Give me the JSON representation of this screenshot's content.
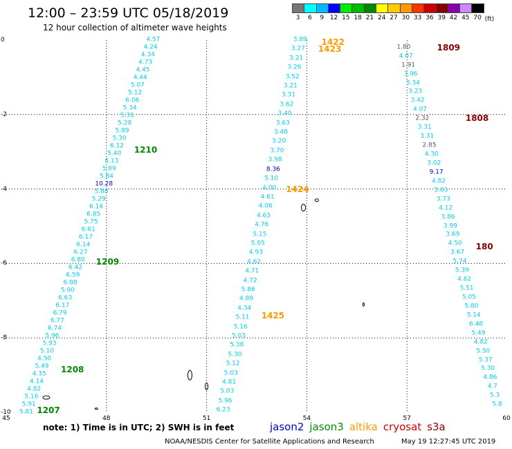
{
  "header": {
    "title": "12:00 – 23:59 UTC 05/18/2019",
    "subtitle": "12 hour collection of altimeter wave heights"
  },
  "colorbar": {
    "unit": "(ft)",
    "bins": [
      {
        "label": "3",
        "color": "#777777"
      },
      {
        "label": "6",
        "color": "#00ffff"
      },
      {
        "label": "9",
        "color": "#00bbff"
      },
      {
        "label": "12",
        "color": "#0000ff"
      },
      {
        "label": "15",
        "color": "#00ee00"
      },
      {
        "label": "18",
        "color": "#00bb00"
      },
      {
        "label": "21",
        "color": "#008800"
      },
      {
        "label": "24",
        "color": "#ffff00"
      },
      {
        "label": "27",
        "color": "#ffcc00"
      },
      {
        "label": "30",
        "color": "#ff9900"
      },
      {
        "label": "33",
        "color": "#ff3300"
      },
      {
        "label": "36",
        "color": "#cc0000"
      },
      {
        "label": "39",
        "color": "#880000"
      },
      {
        "label": "42",
        "color": "#8800aa"
      },
      {
        "label": "45",
        "color": "#cc88ff"
      },
      {
        "label": "70",
        "color": "#000000"
      }
    ]
  },
  "map": {
    "xlim": [
      45,
      60
    ],
    "ylim": [
      -10,
      0
    ],
    "x_ticks": [
      "45",
      "48",
      "51",
      "54",
      "57",
      "60"
    ],
    "y_ticks": [
      "0",
      "-2",
      "-4",
      "-6",
      "-8",
      "-10"
    ],
    "x_grid": [
      48,
      51,
      54,
      57
    ],
    "y_grid": [
      -2,
      -4,
      -6,
      -8
    ]
  },
  "colors": {
    "light_blue": "#00ccee",
    "dark_blue": "#0000cc",
    "gray": "#555555",
    "jason3": "#008800",
    "altika": "#ff9900",
    "cryosat": "#cc0000",
    "s3a": "#880000"
  },
  "passes": [
    {
      "satellite": "jason3",
      "lon0": 49.4,
      "lat0": 0.0,
      "lon1": 45.6,
      "lat1": -10.0,
      "times": [
        {
          "label": "1210",
          "lat": -2.95,
          "dlon": 0.55
        },
        {
          "label": "1209",
          "lat": -5.95,
          "dlon": 0.55
        },
        {
          "label": "1208",
          "lat": -8.85,
          "dlon": 0.6
        },
        {
          "label": "1207",
          "lat": -9.95,
          "dlon": 0.3
        }
      ],
      "values": [
        {
          "v": "4.57",
          "c": "light_blue"
        },
        {
          "v": "4.24",
          "c": "light_blue"
        },
        {
          "v": "4.34",
          "c": "light_blue"
        },
        {
          "v": "4.73",
          "c": "light_blue"
        },
        {
          "v": "4.45",
          "c": "light_blue"
        },
        {
          "v": "4.44",
          "c": "light_blue"
        },
        {
          "v": "5.07",
          "c": "light_blue"
        },
        {
          "v": "5.12",
          "c": "light_blue"
        },
        {
          "v": "6.06",
          "c": "light_blue"
        },
        {
          "v": "5.34",
          "c": "light_blue"
        },
        {
          "v": "5.31",
          "c": "light_blue"
        },
        {
          "v": "5.28",
          "c": "light_blue"
        },
        {
          "v": "5.89",
          "c": "light_blue"
        },
        {
          "v": "5.30",
          "c": "light_blue"
        },
        {
          "v": "6.12",
          "c": "light_blue"
        },
        {
          "v": "5.40",
          "c": "light_blue"
        },
        {
          "v": "6.13",
          "c": "light_blue"
        },
        {
          "v": "5.89",
          "c": "light_blue"
        },
        {
          "v": "5.84",
          "c": "light_blue"
        },
        {
          "v": "10.28",
          "c": "dark_blue"
        },
        {
          "v": "5.88",
          "c": "light_blue"
        },
        {
          "v": "5.29",
          "c": "light_blue"
        },
        {
          "v": "6.14",
          "c": "light_blue"
        },
        {
          "v": "6.85",
          "c": "light_blue"
        },
        {
          "v": "5.75",
          "c": "light_blue"
        },
        {
          "v": "6.61",
          "c": "light_blue"
        },
        {
          "v": "6.17",
          "c": "light_blue"
        },
        {
          "v": "6.14",
          "c": "light_blue"
        },
        {
          "v": "6.27",
          "c": "light_blue"
        },
        {
          "v": "6.80",
          "c": "light_blue"
        },
        {
          "v": "6.42",
          "c": "light_blue"
        },
        {
          "v": "6.59",
          "c": "light_blue"
        },
        {
          "v": "6.88",
          "c": "light_blue"
        },
        {
          "v": "5.90",
          "c": "light_blue"
        },
        {
          "v": "6.63",
          "c": "light_blue"
        },
        {
          "v": "6.17",
          "c": "light_blue"
        },
        {
          "v": "6.79",
          "c": "light_blue"
        },
        {
          "v": "6.77",
          "c": "light_blue"
        },
        {
          "v": "6.74",
          "c": "light_blue"
        },
        {
          "v": "5.96",
          "c": "light_blue"
        },
        {
          "v": "5.93",
          "c": "light_blue"
        },
        {
          "v": "5.10",
          "c": "light_blue"
        },
        {
          "v": "4.50",
          "c": "light_blue"
        },
        {
          "v": "5.49",
          "c": "light_blue"
        },
        {
          "v": "4.35",
          "c": "light_blue"
        },
        {
          "v": "4.14",
          "c": "light_blue"
        },
        {
          "v": "4.82",
          "c": "light_blue"
        },
        {
          "v": "5.16",
          "c": "light_blue"
        },
        {
          "v": "5.91",
          "c": "light_blue"
        },
        {
          "v": "5.81",
          "c": "light_blue"
        }
      ]
    },
    {
      "satellite": "altika",
      "lon0": 53.8,
      "lat0": 0.0,
      "lon1": 51.5,
      "lat1": -9.95,
      "times": [
        {
          "label": "1422",
          "lat": -0.05,
          "dlon": 0.65
        },
        {
          "label": "1423",
          "lat": -0.25,
          "dlon": 0.6
        },
        {
          "label": "1424",
          "lat": -4.0,
          "dlon": 0.5
        },
        {
          "label": "1425",
          "lat": -7.4,
          "dlon": 0.55
        }
      ],
      "values": [
        {
          "v": "3.89",
          "c": "light_blue"
        },
        {
          "v": "3.27",
          "c": "light_blue"
        },
        {
          "v": "3.21",
          "c": "light_blue"
        },
        {
          "v": "3.26",
          "c": "light_blue"
        },
        {
          "v": "3.52",
          "c": "light_blue"
        },
        {
          "v": "3.21",
          "c": "light_blue"
        },
        {
          "v": "3.31",
          "c": "light_blue"
        },
        {
          "v": "3.62",
          "c": "light_blue"
        },
        {
          "v": "3.40",
          "c": "light_blue"
        },
        {
          "v": "3.63",
          "c": "light_blue"
        },
        {
          "v": "3.48",
          "c": "light_blue"
        },
        {
          "v": "3.20",
          "c": "light_blue"
        },
        {
          "v": "3.70",
          "c": "light_blue"
        },
        {
          "v": "3.98",
          "c": "light_blue"
        },
        {
          "v": "8.36",
          "c": "dark_blue"
        },
        {
          "v": "5.10",
          "c": "light_blue"
        },
        {
          "v": "4.00",
          "c": "light_blue"
        },
        {
          "v": "4.61",
          "c": "light_blue"
        },
        {
          "v": "4.06",
          "c": "light_blue"
        },
        {
          "v": "4.63",
          "c": "light_blue"
        },
        {
          "v": "4.76",
          "c": "light_blue"
        },
        {
          "v": "5.15",
          "c": "light_blue"
        },
        {
          "v": "5.05",
          "c": "light_blue"
        },
        {
          "v": "4.93",
          "c": "light_blue"
        },
        {
          "v": "4.62",
          "c": "light_blue"
        },
        {
          "v": "4.71",
          "c": "light_blue"
        },
        {
          "v": "4.72",
          "c": "light_blue"
        },
        {
          "v": "5.86",
          "c": "light_blue"
        },
        {
          "v": "4.89",
          "c": "light_blue"
        },
        {
          "v": "4.34",
          "c": "light_blue"
        },
        {
          "v": "5.11",
          "c": "light_blue"
        },
        {
          "v": "5.16",
          "c": "light_blue"
        },
        {
          "v": "5.03",
          "c": "light_blue"
        },
        {
          "v": "5.38",
          "c": "light_blue"
        },
        {
          "v": "5.30",
          "c": "light_blue"
        },
        {
          "v": "5.12",
          "c": "light_blue"
        },
        {
          "v": "5.03",
          "c": "light_blue"
        },
        {
          "v": "4.81",
          "c": "light_blue"
        },
        {
          "v": "5.03",
          "c": "light_blue"
        },
        {
          "v": "5.96",
          "c": "light_blue"
        },
        {
          "v": "6.23",
          "c": "light_blue"
        }
      ]
    },
    {
      "satellite": "s3a",
      "lon0": 56.9,
      "lat0": -0.2,
      "lon1": 59.7,
      "lat1": -9.8,
      "times": [
        {
          "label": "1809",
          "lat": -0.2,
          "dlon": 1.0
        },
        {
          "label": "1808",
          "lat": -2.1,
          "dlon": 1.3
        },
        {
          "label": "180",
          "lat": -5.55,
          "dlon": 0.6
        }
      ],
      "values": [
        {
          "v": "1.80",
          "c": "gray"
        },
        {
          "v": "4.07",
          "c": "light_blue"
        },
        {
          "v": "1.91",
          "c": "gray"
        },
        {
          "v": "3.96",
          "c": "light_blue"
        },
        {
          "v": "3.34",
          "c": "light_blue"
        },
        {
          "v": "3.23",
          "c": "light_blue"
        },
        {
          "v": "3.42",
          "c": "light_blue"
        },
        {
          "v": "4.07",
          "c": "light_blue"
        },
        {
          "v": "2.32",
          "c": "gray"
        },
        {
          "v": "3.31",
          "c": "light_blue"
        },
        {
          "v": "3.31",
          "c": "light_blue"
        },
        {
          "v": "2.85",
          "c": "gray"
        },
        {
          "v": "4.30",
          "c": "light_blue"
        },
        {
          "v": "3.02",
          "c": "light_blue"
        },
        {
          "v": "9.17",
          "c": "dark_blue"
        },
        {
          "v": "4.82",
          "c": "light_blue"
        },
        {
          "v": "3.63",
          "c": "light_blue"
        },
        {
          "v": "3.73",
          "c": "light_blue"
        },
        {
          "v": "4.12",
          "c": "light_blue"
        },
        {
          "v": "3.86",
          "c": "light_blue"
        },
        {
          "v": "3.99",
          "c": "light_blue"
        },
        {
          "v": "3.69",
          "c": "light_blue"
        },
        {
          "v": "4.50",
          "c": "light_blue"
        },
        {
          "v": "3.67",
          "c": "light_blue"
        },
        {
          "v": "5.74",
          "c": "light_blue"
        },
        {
          "v": "5.39",
          "c": "light_blue"
        },
        {
          "v": "4.62",
          "c": "light_blue"
        },
        {
          "v": "5.51",
          "c": "light_blue"
        },
        {
          "v": "5.05",
          "c": "light_blue"
        },
        {
          "v": "5.80",
          "c": "light_blue"
        },
        {
          "v": "5.14",
          "c": "light_blue"
        },
        {
          "v": "6.48",
          "c": "light_blue"
        },
        {
          "v": "5.49",
          "c": "light_blue"
        },
        {
          "v": "4.82",
          "c": "light_blue"
        },
        {
          "v": "5.50",
          "c": "light_blue"
        },
        {
          "v": "5.37",
          "c": "light_blue"
        },
        {
          "v": "5.30",
          "c": "light_blue"
        },
        {
          "v": "4.86",
          "c": "light_blue"
        },
        {
          "v": "4.7",
          "c": "light_blue"
        },
        {
          "v": "5.3",
          "c": "light_blue"
        },
        {
          "v": "5.8",
          "c": "light_blue"
        }
      ]
    }
  ],
  "footer": {
    "note": "note:  1) Time is in UTC;  2) SWH is in feet",
    "legend": [
      {
        "label": "jason2",
        "color": "#0000cc"
      },
      {
        "label": "jason3",
        "color": "#008800"
      },
      {
        "label": "altika",
        "color": "#ff9900"
      },
      {
        "label": "cryosat",
        "color": "#cc0000"
      },
      {
        "label": "s3a",
        "color": "#880000"
      }
    ],
    "credit": "NOAA/NESDIS Center for Satellite Applications and Research",
    "timestamp": "May 19 12:27:45 UTC 2019"
  }
}
